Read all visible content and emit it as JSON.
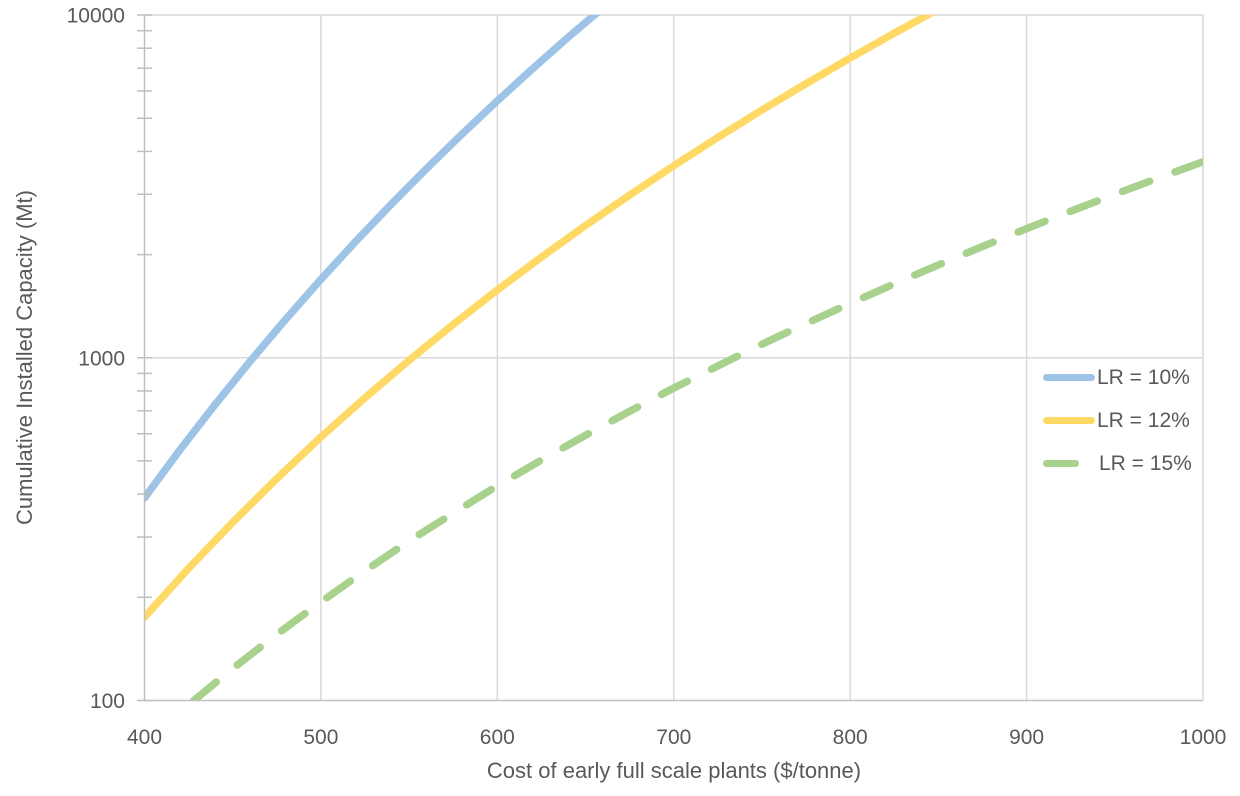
{
  "colors": {
    "background": "#ffffff",
    "grid": "#d9d9d9",
    "axis_line": "#bfbfbf",
    "text": "#595959"
  },
  "chart_data": {
    "type": "line",
    "title": "",
    "xlabel": "Cost of early full scale plants ($/tonne)",
    "ylabel": "Cumulative Installed Capacity (Mt)",
    "x_axis": {
      "scale": "linear",
      "min": 400,
      "max": 1000,
      "ticks": [
        400,
        500,
        600,
        700,
        800,
        900,
        1000
      ]
    },
    "y_axis": {
      "scale": "log",
      "min": 100,
      "max": 10000,
      "ticks": [
        100,
        1000,
        10000
      ],
      "minor_ticks": [
        200,
        300,
        400,
        500,
        600,
        700,
        800,
        900,
        2000,
        3000,
        4000,
        5000,
        6000,
        7000,
        8000,
        9000
      ]
    },
    "grid": {
      "vertical": true,
      "horizontal": true
    },
    "legend": {
      "position": "middle-right",
      "items": [
        "LR = 10%",
        "LR = 12%",
        "LR = 15%"
      ]
    },
    "series": [
      {
        "name": "LR = 10%",
        "color": "#9dc3e6",
        "style": "solid",
        "points": [
          [
            400,
            390
          ],
          [
            420,
            538
          ],
          [
            440,
            730
          ],
          [
            460,
            978
          ],
          [
            480,
            1294
          ],
          [
            500,
            1693
          ],
          [
            520,
            2192
          ],
          [
            540,
            2810
          ],
          [
            560,
            3569
          ],
          [
            580,
            4497
          ],
          [
            600,
            5620
          ],
          [
            620,
            6973
          ],
          [
            640,
            8596
          ],
          [
            660,
            10520
          ]
        ]
      },
      {
        "name": "LR = 12%",
        "color": "#ffd966",
        "style": "solid",
        "points": [
          [
            400,
            175
          ],
          [
            425,
            243
          ],
          [
            450,
            331
          ],
          [
            475,
            444
          ],
          [
            500,
            587
          ],
          [
            525,
            764
          ],
          [
            550,
            983
          ],
          [
            575,
            1251
          ],
          [
            600,
            1576
          ],
          [
            625,
            1966
          ],
          [
            650,
            2431
          ],
          [
            675,
            2983
          ],
          [
            700,
            3632
          ],
          [
            725,
            4394
          ],
          [
            750,
            5281
          ],
          [
            775,
            6307
          ],
          [
            800,
            7492
          ],
          [
            825,
            8851
          ],
          [
            850,
            10410
          ]
        ]
      },
      {
        "name": "LR = 15%",
        "color": "#a9d18e",
        "style": "dashed",
        "points": [
          [
            428,
            100
          ],
          [
            450,
            124
          ],
          [
            475,
            156
          ],
          [
            500,
            194
          ],
          [
            525,
            239
          ],
          [
            550,
            292
          ],
          [
            575,
            352
          ],
          [
            600,
            423
          ],
          [
            625,
            503
          ],
          [
            650,
            594
          ],
          [
            675,
            698
          ],
          [
            700,
            816
          ],
          [
            725,
            947
          ],
          [
            750,
            1095
          ],
          [
            775,
            1259
          ],
          [
            800,
            1441
          ],
          [
            825,
            1643
          ],
          [
            850,
            1866
          ],
          [
            875,
            2111
          ],
          [
            900,
            2381
          ],
          [
            925,
            2676
          ],
          [
            950,
            2999
          ],
          [
            975,
            3350
          ],
          [
            1000,
            3731
          ]
        ]
      }
    ]
  }
}
